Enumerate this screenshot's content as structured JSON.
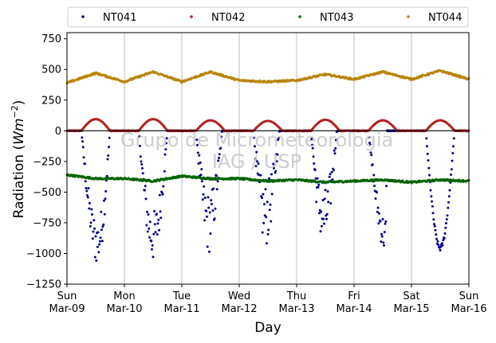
{
  "chart_data": {
    "type": "scatter",
    "xlabel": "Day",
    "ylabel_main": "Radiation (",
    "ylabel_unit": "Wm",
    "ylabel_exp": "−2",
    "ylabel_close": ")",
    "xlim": [
      0,
      7
    ],
    "ylim": [
      -1250,
      800
    ],
    "yticks": [
      -1250,
      -1000,
      -750,
      -500,
      -250,
      0,
      250,
      500,
      750
    ],
    "ytick_labels": [
      "−1250",
      "−1000",
      "−750",
      "−500",
      "−250",
      "0",
      "250",
      "500",
      "750"
    ],
    "xticks": [
      0,
      1,
      2,
      3,
      4,
      5,
      6,
      7
    ],
    "xtick_labels": [
      [
        "Sun",
        "Mar-09"
      ],
      [
        "Mon",
        "Mar-10"
      ],
      [
        "Tue",
        "Mar-11"
      ],
      [
        "Wed",
        "Mar-12"
      ],
      [
        "Thu",
        "Mar-13"
      ],
      [
        "Fri",
        "Mar-14"
      ],
      [
        "Sat",
        "Mar-15"
      ],
      [
        "Sun",
        "Mar-16"
      ]
    ],
    "grid": "vertical",
    "zero_line": true,
    "legend_placement": "top (above plot), 4 columns",
    "watermark": [
      "Grupo de Micrometeorologia",
      "IAG / USP"
    ],
    "series": [
      {
        "name": "NT041",
        "color": "#00008b",
        "daily": [
          {
            "start": 0.25,
            "end": 0.75,
            "peak_time": 0.53,
            "peak": -1100,
            "noise": 0.35
          },
          {
            "start": 1.25,
            "end": 1.75,
            "peak_time": 1.5,
            "peak": -1080,
            "noise": 0.4
          },
          {
            "start": 2.25,
            "end": 2.7,
            "peak_time": 2.47,
            "peak": -1000,
            "noise": 0.5
          },
          {
            "start": 3.25,
            "end": 3.7,
            "peak_time": 3.45,
            "peak": -950,
            "noise": 0.55
          },
          {
            "start": 4.25,
            "end": 4.7,
            "peak_time": 4.47,
            "peak": -950,
            "noise": 0.5
          },
          {
            "start": 5.25,
            "end": 5.57,
            "peak_time": 5.55,
            "peak": -1000,
            "noise": 0.3
          },
          {
            "start": 6.25,
            "end": 6.75,
            "peak_time": 6.5,
            "peak": -980,
            "noise": 0.05
          }
        ],
        "night_value": 0
      },
      {
        "name": "NT042",
        "color": "#b22222",
        "daily": [
          {
            "start": 0.25,
            "end": 0.75,
            "peak": 95
          },
          {
            "start": 1.25,
            "end": 1.75,
            "peak": 95
          },
          {
            "start": 2.25,
            "end": 2.75,
            "peak": 85
          },
          {
            "start": 3.25,
            "end": 3.75,
            "peak": 80
          },
          {
            "start": 4.25,
            "end": 4.75,
            "peak": 90
          },
          {
            "start": 5.25,
            "end": 5.75,
            "peak": 85
          },
          {
            "start": 6.25,
            "end": 6.75,
            "peak": 85
          }
        ],
        "night_value": 0
      },
      {
        "name": "NT043",
        "color": "#006400",
        "baseline": [
          [
            0,
            -360
          ],
          [
            0.5,
            -390
          ],
          [
            1,
            -390
          ],
          [
            1.5,
            -410
          ],
          [
            2,
            -370
          ],
          [
            2.5,
            -390
          ],
          [
            3,
            -390
          ],
          [
            3.5,
            -410
          ],
          [
            4,
            -400
          ],
          [
            4.5,
            -420
          ],
          [
            5,
            -410
          ],
          [
            5.5,
            -400
          ],
          [
            6,
            -420
          ],
          [
            6.5,
            -400
          ],
          [
            7,
            -410
          ]
        ],
        "night_value": 0
      },
      {
        "name": "NT044",
        "color": "#b8860b",
        "baseline": [
          [
            0,
            390
          ],
          [
            0.5,
            470
          ],
          [
            1,
            400
          ],
          [
            1.5,
            480
          ],
          [
            2,
            400
          ],
          [
            2.5,
            480
          ],
          [
            3,
            410
          ],
          [
            3.5,
            400
          ],
          [
            4,
            410
          ],
          [
            4.5,
            460
          ],
          [
            5,
            420
          ],
          [
            5.5,
            480
          ],
          [
            6,
            420
          ],
          [
            6.5,
            490
          ],
          [
            7,
            420
          ]
        ],
        "night_value": 0
      }
    ]
  }
}
